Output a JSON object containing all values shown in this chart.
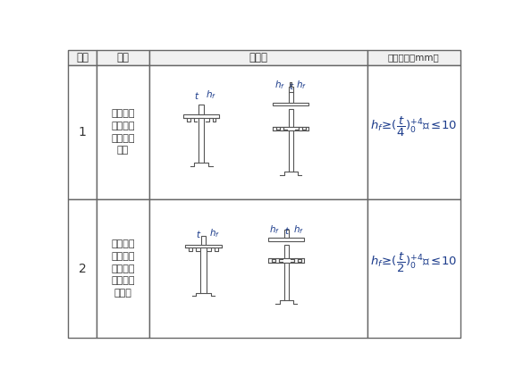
{
  "table_bg": "#ffffff",
  "border_color": "#666666",
  "header_bg": "#f0f0f0",
  "text_color": "#333333",
  "diagram_color": "#555555",
  "label_color": "#1a3a8a",
  "formula_color": "#1a3a8a",
  "header_row": [
    "序号",
    "项目",
    "示意图",
    "允许偏差（mm）"
  ],
  "row1_num": "1",
  "row2_num": "2",
  "row1_label_lines": [
    "一般全锈",
    "的角接与",
    "对接组合",
    "焊缝"
  ],
  "row2_label_lines": [
    "需经疲劳",
    "验算的全",
    "焊透角接",
    "与对接组",
    "合焊缝"
  ]
}
